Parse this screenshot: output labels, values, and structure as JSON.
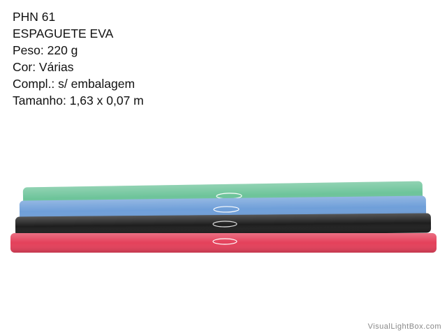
{
  "product": {
    "lines": [
      "PHN 61",
      "ESPAGUETE EVA",
      "Peso: 220 g",
      "Cor: Várias",
      "Compl.: s/ embalagem",
      "Tamanho: 1,63 x 0,07 m"
    ]
  },
  "watermark": "VisualLightBox.com"
}
